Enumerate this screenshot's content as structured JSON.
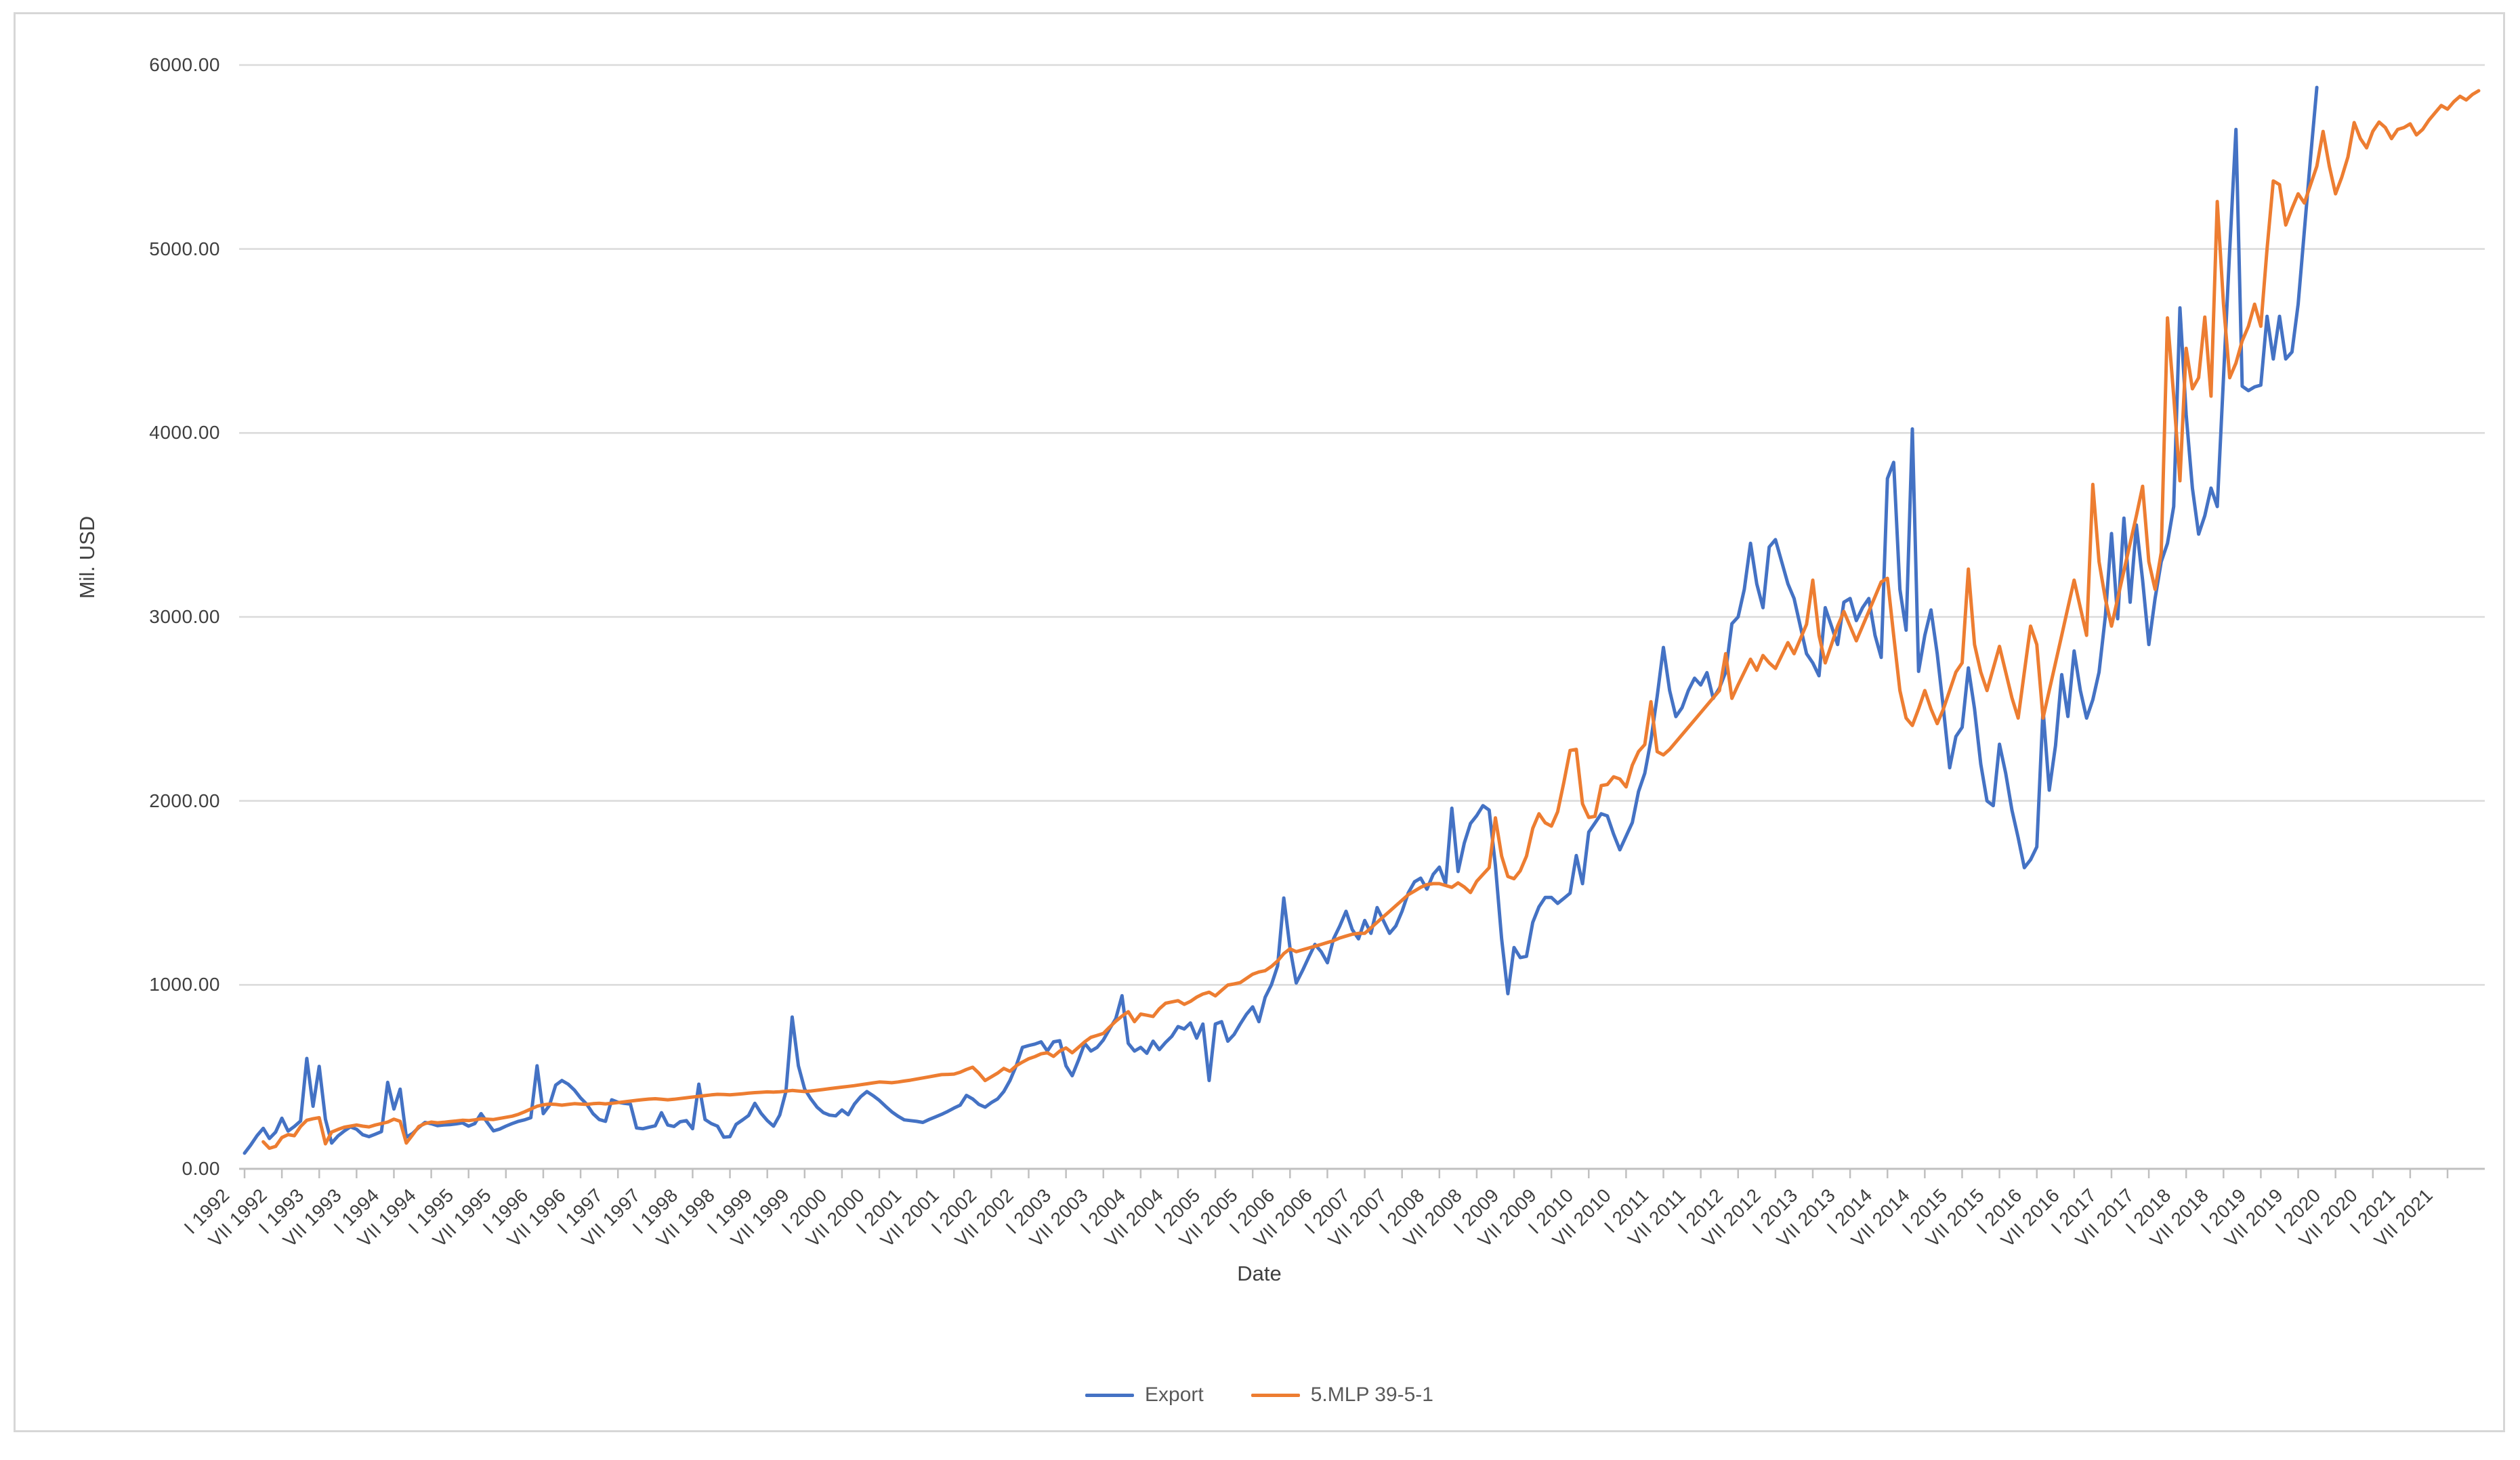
{
  "chart_data": {
    "type": "line",
    "title": "",
    "ylabel": "Mil. USD",
    "xlabel": "Date",
    "ylim": [
      0,
      6000
    ],
    "grid": "horizontal",
    "legend_position": "bottom-center",
    "y_tick_labels": [
      "0.00",
      "1000.00",
      "2000.00",
      "3000.00",
      "4000.00",
      "5000.00",
      "6000.00"
    ],
    "y_tick_values": [
      0,
      1000,
      2000,
      3000,
      4000,
      5000,
      6000
    ],
    "x_unit": "month",
    "x_start": "I 1992",
    "x_labels_every_n_months": 6,
    "x_labels": [
      "I 1992",
      "VII 1992",
      "I 1993",
      "VII 1993",
      "I 1994",
      "VII 1994",
      "I 1995",
      "VII 1995",
      "I 1996",
      "VII 1996",
      "I 1997",
      "VII 1997",
      "I 1998",
      "VII 1998",
      "I 1999",
      "VII 1999",
      "I 2000",
      "VII 2000",
      "I 2001",
      "VII 2001",
      "I 2002",
      "VII 2002",
      "I 2003",
      "VII 2003",
      "I 2004",
      "VII 2004",
      "I 2005",
      "VII 2005",
      "I 2006",
      "VII 2006",
      "I 2007",
      "VII 2007",
      "I 2008",
      "VII 2008",
      "I 2009",
      "VII 2009",
      "I 2010",
      "VII 2010",
      "I 2011",
      "VII 2011",
      "I 2012",
      "VII 2012",
      "I 2013",
      "VII 2013",
      "I 2014",
      "VII 2014",
      "I 2015",
      "VII 2015",
      "I 2016",
      "VII 2016",
      "I 2017",
      "VII 2017",
      "I 2018",
      "VII 2018",
      "I 2019",
      "VII 2019",
      "I 2020",
      "VII 2020",
      "I 2021",
      "VII 2021"
    ],
    "series": [
      {
        "name": "Export",
        "color": "#4472C4",
        "start_month_index": 0,
        "start_label": "I 1992",
        "values": [
          85,
          130,
          180,
          220,
          165,
          200,
          275,
          205,
          230,
          260,
          600,
          340,
          557,
          270,
          140,
          178,
          205,
          228,
          215,
          185,
          175,
          188,
          202,
          470,
          325,
          433,
          172,
          192,
          225,
          252,
          245,
          235,
          238,
          240,
          244,
          250,
          232,
          246,
          300,
          252,
          206,
          216,
          232,
          246,
          258,
          266,
          278,
          560,
          300,
          345,
          455,
          480,
          460,
          428,
          385,
          350,
          300,
          268,
          258,
          375,
          362,
          356,
          352,
          222,
          218,
          226,
          234,
          305,
          238,
          230,
          256,
          262,
          218,
          460,
          268,
          246,
          232,
          172,
          175,
          242,
          265,
          290,
          356,
          302,
          262,
          232,
          292,
          420,
          825,
          560,
          434,
          380,
          335,
          306,
          292,
          288,
          320,
          294,
          352,
          392,
          420,
          398,
          372,
          340,
          310,
          286,
          266,
          262,
          258,
          252,
          268,
          282,
          296,
          312,
          330,
          346,
          399,
          380,
          350,
          335,
          360,
          380,
          420,
          480,
          560,
          660,
          670,
          678,
          690,
          640,
          690,
          696,
          560,
          506,
          590,
          682,
          640,
          660,
          700,
          760,
          816,
          941,
          682,
          640,
          660,
          628,
          694,
          648,
          687,
          720,
          773,
          760,
          793,
          710,
          787,
          480,
          787,
          800,
          694,
          730,
          787,
          840,
          880,
          800,
          932,
          1000,
          1103,
          1472,
          1200,
          1010,
          1077,
          1150,
          1220,
          1180,
          1120,
          1250,
          1320,
          1400,
          1300,
          1250,
          1350,
          1280,
          1420,
          1350,
          1280,
          1320,
          1400,
          1500,
          1560,
          1580,
          1520,
          1600,
          1640,
          1550,
          1960,
          1616,
          1771,
          1877,
          1920,
          1974,
          1950,
          1650,
          1250,
          952,
          1203,
          1148,
          1155,
          1339,
          1424,
          1475,
          1475,
          1443,
          1470,
          1498,
          1703,
          1550,
          1830,
          1880,
          1930,
          1918,
          1819,
          1734,
          1808,
          1882,
          2051,
          2150,
          2330,
          2568,
          2834,
          2600,
          2458,
          2507,
          2600,
          2667,
          2630,
          2697,
          2557,
          2613,
          2700,
          2963,
          3000,
          3150,
          3400,
          3180,
          3050,
          3380,
          3420,
          3300,
          3180,
          3100,
          2950,
          2800,
          2750,
          2680,
          3050,
          2950,
          2850,
          3080,
          3100,
          2980,
          3050,
          3100,
          2900,
          2780,
          3752,
          3840,
          3150,
          2928,
          4022,
          2704,
          2900,
          3038,
          2800,
          2500,
          2180,
          2350,
          2400,
          2723,
          2500,
          2200,
          2000,
          1974,
          2308,
          2150,
          1950,
          1800,
          1637,
          1680,
          1750,
          2499,
          2058,
          2300,
          2686,
          2459,
          2815,
          2600,
          2450,
          2550,
          2700,
          3000,
          3453,
          2990,
          3537,
          3080,
          3500,
          3200,
          2850,
          3100,
          3300,
          3400,
          3600,
          4680,
          4100,
          3700,
          3450,
          3550,
          3700,
          3600,
          4300,
          5000,
          5650,
          4254,
          4230,
          4250,
          4260,
          4634,
          4402,
          4634,
          4402,
          4440,
          4700,
          5100,
          5500,
          5878
        ]
      },
      {
        "name": "5.MLP 39-5-1",
        "color": "#ED7D31",
        "start_month_index": 3,
        "start_label": "IV 1992",
        "values": [
          147,
          112,
          122,
          170,
          186,
          180,
          230,
          264,
          272,
          278,
          136,
          200,
          214,
          226,
          232,
          238,
          232,
          228,
          238,
          246,
          254,
          270,
          258,
          140,
          184,
          230,
          246,
          254,
          250,
          253,
          257,
          260,
          264,
          262,
          266,
          272,
          270,
          268,
          274,
          280,
          286,
          296,
          310,
          325,
          340,
          348,
          352,
          350,
          346,
          350,
          354,
          352,
          350,
          354,
          356,
          353,
          356,
          360,
          364,
          368,
          372,
          376,
          379,
          381,
          378,
          375,
          378,
          382,
          386,
          390,
          394,
          398,
          402,
          405,
          404,
          402,
          405,
          408,
          411,
          414,
          416,
          418,
          417,
          419,
          422,
          426,
          423,
          420,
          423,
          427,
          431,
          436,
          440,
          444,
          448,
          452,
          457,
          462,
          467,
          472,
          470,
          468,
          472,
          477,
          482,
          488,
          494,
          500,
          506,
          512,
          513,
          515,
          525,
          540,
          552,
          520,
          480,
          500,
          520,
          546,
          530,
          560,
          580,
          598,
          610,
          625,
          631,
          611,
          640,
          657,
          631,
          660,
          690,
          715,
          725,
          736,
          770,
          802,
          830,
          854,
          800,
          841,
          835,
          828,
          870,
          900,
          907,
          914,
          894,
          910,
          933,
          950,
          960,
          940,
          970,
          999,
          1005,
          1012,
          1035,
          1058,
          1070,
          1077,
          1100,
          1130,
          1170,
          1196,
          1180,
          1190,
          1200,
          1210,
          1220,
          1230,
          1240,
          1255,
          1265,
          1275,
          1280,
          1280,
          1310,
          1340,
          1370,
          1400,
          1430,
          1460,
          1490,
          1510,
          1530,
          1545,
          1550,
          1550,
          1540,
          1530,
          1554,
          1532,
          1502,
          1563,
          1600,
          1637,
          1908,
          1700,
          1589,
          1577,
          1620,
          1700,
          1850,
          1930,
          1881,
          1863,
          1941,
          2100,
          2274,
          2280,
          1984,
          1910,
          1916,
          2083,
          2089,
          2131,
          2119,
          2076,
          2194,
          2268,
          2306,
          2539,
          2268,
          2250,
          2280,
          2320,
          2360,
          2400,
          2440,
          2480,
          2520,
          2560,
          2600,
          2800,
          2557,
          2631,
          2700,
          2770,
          2710,
          2790,
          2750,
          2720,
          2790,
          2860,
          2800,
          2880,
          2960,
          3200,
          2900,
          2750,
          2850,
          2950,
          3030,
          2950,
          2870,
          2950,
          3030,
          3110,
          3190,
          3210,
          2900,
          2600,
          2450,
          2410,
          2500,
          2600,
          2500,
          2420,
          2500,
          2600,
          2700,
          2750,
          3260,
          2850,
          2700,
          2600,
          2720,
          2840,
          2700,
          2560,
          2450,
          2700,
          2950,
          2850,
          2450,
          2600,
          2750,
          2900,
          3050,
          3200,
          3050,
          2900,
          3720,
          3300,
          3100,
          2950,
          3100,
          3250,
          3400,
          3550,
          3710,
          3300,
          3150,
          3350,
          4625,
          4200,
          3740,
          4460,
          4240,
          4300,
          4630,
          4200,
          5258,
          4700,
          4300,
          4380,
          4500,
          4580,
          4700,
          4580,
          5000,
          5370,
          5350,
          5130,
          5220,
          5300,
          5250,
          5350,
          5450,
          5639,
          5450,
          5300,
          5390,
          5500,
          5687,
          5600,
          5550,
          5640,
          5690,
          5660,
          5600,
          5650,
          5660,
          5680,
          5620,
          5650,
          5700,
          5740,
          5780,
          5760,
          5800,
          5830,
          5810,
          5840,
          5860
        ]
      }
    ]
  },
  "legend": {
    "export_label": "Export",
    "mlp_label": "5.MLP 39-5-1"
  },
  "colors": {
    "export_line": "#4472C4",
    "mlp_line": "#ED7D31",
    "gridline": "#dadada",
    "axis_line": "#c0c0c0",
    "label_text": "#404040",
    "legend_text": "#595959",
    "frame_border": "#d7d7d7"
  }
}
